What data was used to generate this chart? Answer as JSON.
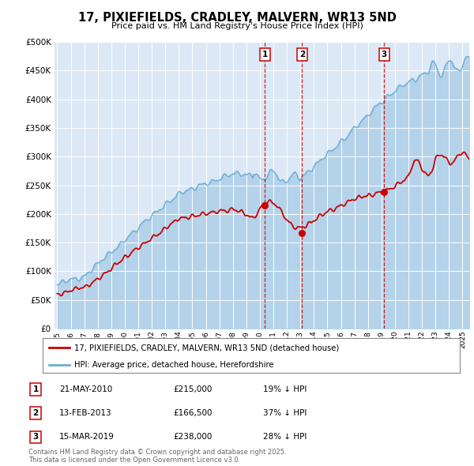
{
  "title": "17, PIXIEFIELDS, CRADLEY, MALVERN, WR13 5ND",
  "subtitle": "Price paid vs. HM Land Registry's House Price Index (HPI)",
  "legend_line1": "17, PIXIEFIELDS, CRADLEY, MALVERN, WR13 5ND (detached house)",
  "legend_line2": "HPI: Average price, detached house, Herefordshire",
  "sale_events": [
    {
      "label": "1",
      "date": 2010.38,
      "price": 215000,
      "pct": "19% ↓ HPI",
      "date_str": "21-MAY-2010"
    },
    {
      "label": "2",
      "date": 2013.12,
      "price": 166500,
      "pct": "37% ↓ HPI",
      "date_str": "13-FEB-2013"
    },
    {
      "label": "3",
      "date": 2019.21,
      "price": 238000,
      "pct": "28% ↓ HPI",
      "date_str": "15-MAR-2019"
    }
  ],
  "footer_line1": "Contains HM Land Registry data © Crown copyright and database right 2025.",
  "footer_line2": "This data is licensed under the Open Government Licence v3.0.",
  "hpi_color": "#6baed6",
  "price_color": "#cc0000",
  "sale_line_color": "#cc0000",
  "background_color": "#dce8f5",
  "ylim": [
    0,
    500000
  ],
  "xlim_start": 1994.8,
  "xlim_end": 2025.5
}
